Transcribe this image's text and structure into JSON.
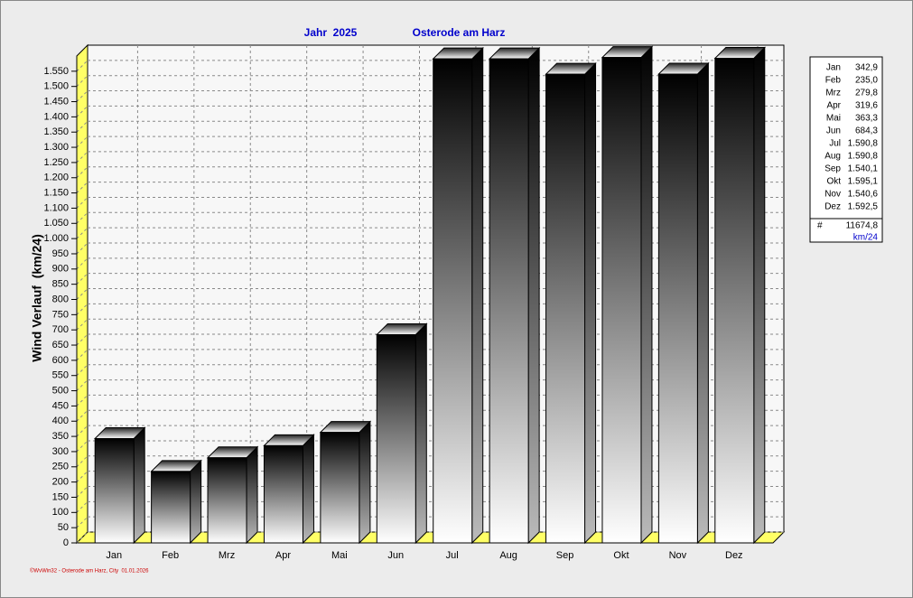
{
  "chart_data": {
    "type": "bar",
    "title": "Jahr  2025",
    "subtitle": "Osterode am Harz",
    "y_label": "Wind Verlauf  (km/24)",
    "footer": "©WvWin32 - Osterode am Harz, City  01.01.2026",
    "categories": [
      "Jan",
      "Feb",
      "Mrz",
      "Apr",
      "Mai",
      "Jun",
      "Jul",
      "Aug",
      "Sep",
      "Okt",
      "Nov",
      "Dez"
    ],
    "values": [
      342.9,
      235.0,
      279.8,
      319.6,
      363.3,
      684.3,
      1590.8,
      1590.8,
      1540.1,
      1595.1,
      1540.6,
      1592.5
    ],
    "value_labels": [
      "342,9",
      "235,0",
      "279,8",
      "319,6",
      "363,3",
      "684,3",
      "1.590,8",
      "1.590,8",
      "1.540,1",
      "1.595,1",
      "1.540,6",
      "1.592,5"
    ],
    "total": {
      "value": 11674.8,
      "label": "11674,8"
    },
    "total_symbol": "#",
    "unit": "km/24",
    "ylim": [
      0,
      1600
    ],
    "yticks": [
      0,
      50,
      100,
      150,
      200,
      250,
      300,
      350,
      400,
      450,
      500,
      550,
      600,
      650,
      700,
      750,
      800,
      850,
      900,
      950,
      {
        "value": 1000,
        "label": "1.000"
      },
      {
        "value": 1050,
        "label": "1.050"
      },
      {
        "value": 1100,
        "label": "1.100"
      },
      {
        "value": 1150,
        "label": "1.150"
      },
      {
        "value": 1200,
        "label": "1.200"
      },
      {
        "value": 1250,
        "label": "1.250"
      },
      {
        "value": 1300,
        "label": "1.300"
      },
      {
        "value": 1350,
        "label": "1.350"
      },
      {
        "value": 1400,
        "label": "1.400"
      },
      {
        "value": 1450,
        "label": "1.450"
      },
      {
        "value": 1500,
        "label": "1.500"
      },
      {
        "value": 1550,
        "label": "1.550"
      }
    ],
    "grid": true,
    "wall_color": "#ffff66",
    "legend": "right"
  }
}
